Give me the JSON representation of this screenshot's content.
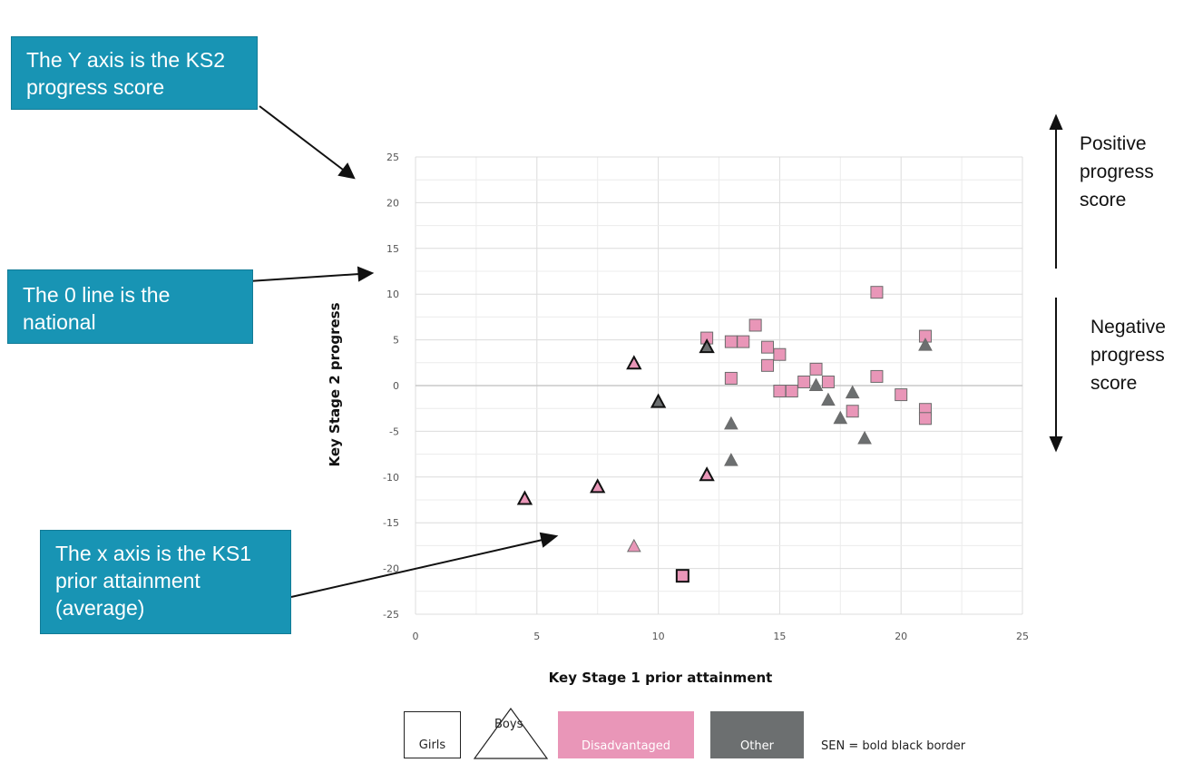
{
  "chart_data": {
    "type": "scatter",
    "xlabel": "Key Stage 1 prior attainment",
    "ylabel": "Key Stage 2 progress",
    "xlim": [
      0,
      25
    ],
    "ylim": [
      -25,
      25
    ],
    "xticks": [
      "0",
      "5",
      "10",
      "15",
      "20",
      "25"
    ],
    "yticks": [
      "25",
      "20",
      "15",
      "10",
      "5",
      "0",
      "-5",
      "-10",
      "-15",
      "-20",
      "-25"
    ],
    "grid": true,
    "points": [
      {
        "x": 12,
        "y": 5.2,
        "shape": "square",
        "group": "Disadvantaged",
        "sen": false
      },
      {
        "x": 12,
        "y": 4.2,
        "shape": "triangle",
        "group": "Other",
        "sen": true
      },
      {
        "x": 13,
        "y": 4.8,
        "shape": "square",
        "group": "Disadvantaged",
        "sen": false
      },
      {
        "x": 13.5,
        "y": 4.8,
        "shape": "square",
        "group": "Disadvantaged",
        "sen": false
      },
      {
        "x": 14,
        "y": 6.6,
        "shape": "square",
        "group": "Disadvantaged",
        "sen": false
      },
      {
        "x": 14.5,
        "y": 4.2,
        "shape": "square",
        "group": "Disadvantaged",
        "sen": false
      },
      {
        "x": 14.5,
        "y": 2.2,
        "shape": "square",
        "group": "Disadvantaged",
        "sen": false
      },
      {
        "x": 15,
        "y": 3.4,
        "shape": "square",
        "group": "Disadvantaged",
        "sen": false
      },
      {
        "x": 13,
        "y": 0.8,
        "shape": "square",
        "group": "Disadvantaged",
        "sen": false
      },
      {
        "x": 15,
        "y": -0.6,
        "shape": "square",
        "group": "Disadvantaged",
        "sen": false
      },
      {
        "x": 15.5,
        "y": -0.6,
        "shape": "square",
        "group": "Disadvantaged",
        "sen": false
      },
      {
        "x": 16,
        "y": 0.4,
        "shape": "square",
        "group": "Disadvantaged",
        "sen": false
      },
      {
        "x": 16.5,
        "y": 1.8,
        "shape": "square",
        "group": "Disadvantaged",
        "sen": false
      },
      {
        "x": 17,
        "y": 0.4,
        "shape": "square",
        "group": "Disadvantaged",
        "sen": false
      },
      {
        "x": 16.5,
        "y": 0,
        "shape": "triangle",
        "group": "Other",
        "sen": false
      },
      {
        "x": 17,
        "y": -1.6,
        "shape": "triangle",
        "group": "Other",
        "sen": false
      },
      {
        "x": 17.5,
        "y": -3.6,
        "shape": "triangle",
        "group": "Other",
        "sen": false
      },
      {
        "x": 18,
        "y": -0.8,
        "shape": "triangle",
        "group": "Other",
        "sen": false
      },
      {
        "x": 18,
        "y": -2.8,
        "shape": "square",
        "group": "Disadvantaged",
        "sen": false
      },
      {
        "x": 18.5,
        "y": -5.8,
        "shape": "triangle",
        "group": "Other",
        "sen": false
      },
      {
        "x": 19,
        "y": 10.2,
        "shape": "square",
        "group": "Disadvantaged",
        "sen": false
      },
      {
        "x": 19,
        "y": 1,
        "shape": "square",
        "group": "Disadvantaged",
        "sen": false
      },
      {
        "x": 20,
        "y": -1,
        "shape": "square",
        "group": "Disadvantaged",
        "sen": false
      },
      {
        "x": 21,
        "y": 5.4,
        "shape": "square",
        "group": "Disadvantaged",
        "sen": false
      },
      {
        "x": 21,
        "y": 4.4,
        "shape": "triangle",
        "group": "Other",
        "sen": false
      },
      {
        "x": 21,
        "y": -2.6,
        "shape": "square",
        "group": "Disadvantaged",
        "sen": false
      },
      {
        "x": 21,
        "y": -3.6,
        "shape": "square",
        "group": "Disadvantaged",
        "sen": false
      },
      {
        "x": 13,
        "y": -4.2,
        "shape": "triangle",
        "group": "Other",
        "sen": false
      },
      {
        "x": 13,
        "y": -8.2,
        "shape": "triangle",
        "group": "Other",
        "sen": false
      },
      {
        "x": 12,
        "y": -9.8,
        "shape": "triangle",
        "group": "Disadvantaged",
        "sen": true
      },
      {
        "x": 9,
        "y": 2.4,
        "shape": "triangle",
        "group": "Disadvantaged",
        "sen": true
      },
      {
        "x": 10,
        "y": -1.8,
        "shape": "triangle",
        "group": "Other",
        "sen": true
      },
      {
        "x": 7.5,
        "y": -11.1,
        "shape": "triangle",
        "group": "Disadvantaged",
        "sen": true
      },
      {
        "x": 4.5,
        "y": -12.4,
        "shape": "triangle",
        "group": "Disadvantaged",
        "sen": true
      },
      {
        "x": 9,
        "y": -17.6,
        "shape": "triangle",
        "group": "Disadvantaged",
        "sen": false
      },
      {
        "x": 11,
        "y": -20.8,
        "shape": "square",
        "group": "Disadvantaged",
        "sen": true
      }
    ],
    "colors": {
      "Disadvantaged": "#e996b8",
      "Other": "#6c6f70"
    }
  },
  "callouts": {
    "y_axis": "The Y axis is the KS2 progress score",
    "zero_line": "The 0 line is the national",
    "x_axis": "The x axis is the KS1 prior attainment (average)"
  },
  "side_notes": {
    "positive": [
      "Positive",
      "progress",
      "score"
    ],
    "negative": [
      "Negative",
      "progress",
      "score"
    ]
  },
  "legend": {
    "girls": "Girls",
    "boys": "Boys",
    "disadvantaged": "Disadvantaged",
    "other": "Other",
    "sen": "SEN = bold black border"
  }
}
